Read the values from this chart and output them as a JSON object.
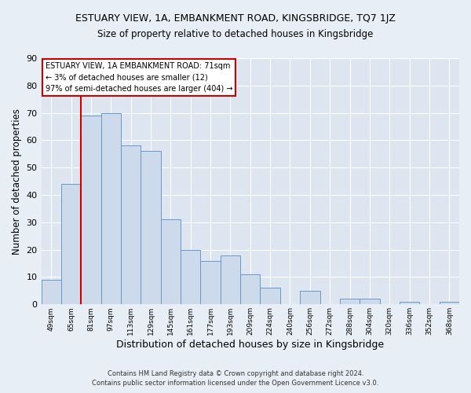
{
  "title_line1": "ESTUARY VIEW, 1A, EMBANKMENT ROAD, KINGSBRIDGE, TQ7 1JZ",
  "title_line2": "Size of property relative to detached houses in Kingsbridge",
  "xlabel": "Distribution of detached houses by size in Kingsbridge",
  "ylabel": "Number of detached properties",
  "bar_labels": [
    "49sqm",
    "65sqm",
    "81sqm",
    "97sqm",
    "113sqm",
    "129sqm",
    "145sqm",
    "161sqm",
    "177sqm",
    "193sqm",
    "209sqm",
    "224sqm",
    "240sqm",
    "256sqm",
    "272sqm",
    "288sqm",
    "304sqm",
    "320sqm",
    "336sqm",
    "352sqm",
    "368sqm"
  ],
  "bar_values": [
    9,
    44,
    69,
    70,
    58,
    56,
    31,
    20,
    16,
    18,
    11,
    6,
    0,
    5,
    0,
    2,
    2,
    0,
    1,
    0,
    1
  ],
  "bar_color": "#ccdaeb",
  "bar_edge_color": "#6699cc",
  "reference_line_x": 2,
  "reference_line_color": "#cc0000",
  "ylim": [
    0,
    90
  ],
  "yticks": [
    0,
    10,
    20,
    30,
    40,
    50,
    60,
    70,
    80,
    90
  ],
  "annotation_title": "ESTUARY VIEW, 1A EMBANKMENT ROAD: 71sqm",
  "annotation_line1": "← 3% of detached houses are smaller (12)",
  "annotation_line2": "97% of semi-detached houses are larger (404) →",
  "annotation_box_color": "#ffffff",
  "annotation_box_edge_color": "#cc0000",
  "footer_line1": "Contains HM Land Registry data © Crown copyright and database right 2024.",
  "footer_line2": "Contains public sector information licensed under the Open Government Licence v3.0.",
  "background_color": "#e8eef5",
  "plot_background_color": "#dde6f0",
  "grid_color": "#ffffff"
}
